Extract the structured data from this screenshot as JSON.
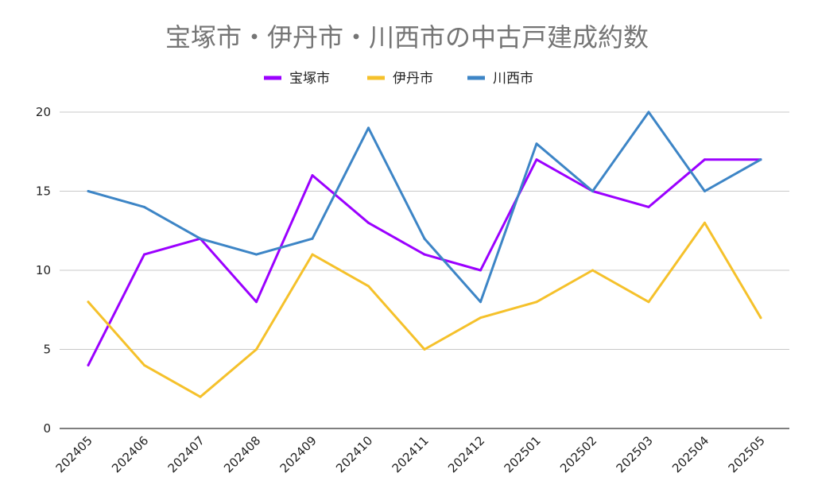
{
  "chart_data": {
    "type": "line",
    "title": "宝塚市・伊丹市・川西市の中古戸建成約数",
    "xlabel": "",
    "ylabel": "",
    "categories": [
      "202405",
      "202406",
      "202407",
      "202408",
      "202409",
      "202410",
      "202411",
      "202412",
      "202501",
      "202502",
      "202503",
      "202504",
      "202505"
    ],
    "ylim": [
      0,
      20
    ],
    "yticks": [
      0,
      5,
      10,
      15,
      20
    ],
    "grid": true,
    "legend_position": "top",
    "series": [
      {
        "name": "宝塚市",
        "color": "#9b00ff",
        "values": [
          4,
          11,
          12,
          8,
          16,
          13,
          11,
          10,
          17,
          15,
          14,
          17,
          17
        ]
      },
      {
        "name": "伊丹市",
        "color": "#f5c12b",
        "values": [
          8,
          4,
          2,
          5,
          11,
          9,
          5,
          7,
          8,
          10,
          8,
          13,
          7
        ]
      },
      {
        "name": "川西市",
        "color": "#3d85c6",
        "values": [
          15,
          14,
          12,
          11,
          12,
          19,
          12,
          8,
          18,
          15,
          20,
          15,
          17
        ]
      }
    ]
  }
}
